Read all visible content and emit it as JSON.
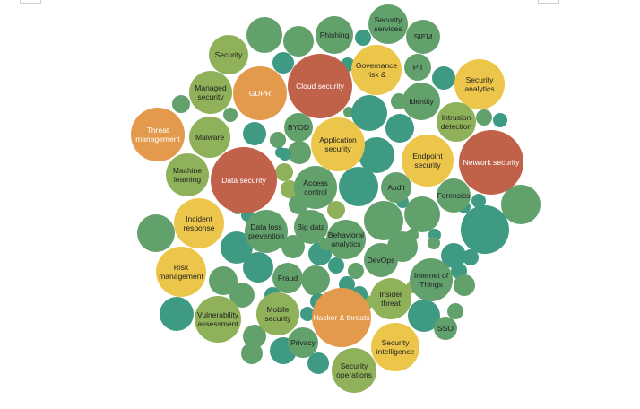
{
  "colors": {
    "red": "#c0614a",
    "orange": "#e39a4c",
    "yellow": "#ecc64a",
    "green": "#8fb15a",
    "darkgreen": "#62a06c",
    "teal": "#3f9a83"
  },
  "bubbles": [
    {
      "label": "Security services",
      "color": "darkgreen"
    },
    {
      "label": "SIEM",
      "color": "darkgreen"
    },
    {
      "label": "Phishing",
      "color": "darkgreen"
    },
    {
      "label": "Security",
      "color": "green"
    },
    {
      "label": "Governance risk &",
      "color": "yellow"
    },
    {
      "label": "PII",
      "color": "darkgreen"
    },
    {
      "label": "Security analytics",
      "color": "yellow"
    },
    {
      "label": "Cloud security",
      "color": "red"
    },
    {
      "label": "GDPR",
      "color": "orange"
    },
    {
      "label": "Managed security",
      "color": "green"
    },
    {
      "label": "Identity",
      "color": "darkgreen"
    },
    {
      "label": "Intrusion detection",
      "color": "green"
    },
    {
      "label": "Threat management",
      "color": "orange"
    },
    {
      "label": "Malware",
      "color": "green"
    },
    {
      "label": "BYOD",
      "color": "darkgreen"
    },
    {
      "label": "Application security",
      "color": "yellow"
    },
    {
      "label": "Endpoint security",
      "color": "yellow"
    },
    {
      "label": "Network security",
      "color": "red"
    },
    {
      "label": "Machine learning",
      "color": "green"
    },
    {
      "label": "Data security",
      "color": "red"
    },
    {
      "label": "Access control",
      "color": "darkgreen"
    },
    {
      "label": "Audit",
      "color": "darkgreen"
    },
    {
      "label": "Forensics",
      "color": "darkgreen"
    },
    {
      "label": "Incident response",
      "color": "yellow"
    },
    {
      "label": "Data loss prevention",
      "color": "darkgreen"
    },
    {
      "label": "Big data",
      "color": "darkgreen"
    },
    {
      "label": "Behavioral analytics",
      "color": "darkgreen"
    },
    {
      "label": "DevOps",
      "color": "darkgreen"
    },
    {
      "label": "Internet of Things",
      "color": "darkgreen"
    },
    {
      "label": "Risk management",
      "color": "yellow"
    },
    {
      "label": "Fraud",
      "color": "darkgreen"
    },
    {
      "label": "Insider threat",
      "color": "green"
    },
    {
      "label": "Vulnerability assessment",
      "color": "green"
    },
    {
      "label": "Mobile security",
      "color": "green"
    },
    {
      "label": "Hacker & threats",
      "color": "orange"
    },
    {
      "label": "SSO",
      "color": "darkgreen"
    },
    {
      "label": "Privacy",
      "color": "darkgreen"
    },
    {
      "label": "Security intelligence",
      "color": "yellow"
    },
    {
      "label": "Security operations",
      "color": "green"
    }
  ],
  "filler": [
    {
      "color": "darkgreen"
    },
    {
      "color": "darkgreen"
    },
    {
      "color": "teal"
    },
    {
      "color": "teal"
    },
    {
      "color": "teal"
    },
    {
      "color": "teal"
    },
    {
      "color": "darkgreen"
    },
    {
      "color": "darkgreen"
    },
    {
      "color": "darkgreen"
    },
    {
      "color": "teal"
    },
    {
      "color": "darkgreen"
    },
    {
      "color": "teal"
    },
    {
      "color": "teal"
    },
    {
      "color": "darkgreen"
    },
    {
      "color": "darkgreen"
    },
    {
      "color": "green"
    },
    {
      "color": "teal"
    },
    {
      "color": "darkgreen"
    },
    {
      "color": "teal"
    },
    {
      "color": "teal"
    },
    {
      "color": "teal"
    },
    {
      "color": "teal"
    },
    {
      "color": "green"
    },
    {
      "color": "darkgreen"
    },
    {
      "color": "green"
    },
    {
      "color": "teal"
    },
    {
      "color": "darkgreen"
    },
    {
      "color": "teal"
    },
    {
      "color": "teal"
    },
    {
      "color": "darkgreen"
    },
    {
      "color": "darkgreen"
    },
    {
      "color": "green"
    },
    {
      "color": "darkgreen"
    },
    {
      "color": "teal"
    },
    {
      "color": "teal"
    },
    {
      "color": "teal"
    },
    {
      "color": "darkgreen"
    },
    {
      "color": "teal"
    },
    {
      "color": "darkgreen"
    },
    {
      "color": "darkgreen"
    },
    {
      "color": "teal"
    },
    {
      "color": "teal"
    },
    {
      "color": "darkgreen"
    },
    {
      "color": "teal"
    },
    {
      "color": "darkgreen"
    },
    {
      "color": "teal"
    },
    {
      "color": "teal"
    },
    {
      "color": "darkgreen"
    },
    {
      "color": "teal"
    },
    {
      "color": "darkgreen"
    },
    {
      "color": "teal"
    },
    {
      "color": "teal"
    },
    {
      "color": "darkgreen"
    },
    {
      "color": "teal"
    },
    {
      "color": "teal"
    },
    {
      "color": "darkgreen"
    },
    {
      "color": "darkgreen"
    },
    {
      "color": "darkgreen"
    },
    {
      "color": "teal"
    },
    {
      "color": "teal"
    },
    {
      "color": "green"
    },
    {
      "color": "darkgreen"
    },
    {
      "color": "teal"
    },
    {
      "color": "teal"
    },
    {
      "color": "darkgreen"
    },
    {
      "color": "green"
    },
    {
      "color": "darkgreen"
    },
    {
      "color": "teal"
    },
    {
      "color": "darkgreen"
    },
    {
      "color": "teal"
    }
  ]
}
